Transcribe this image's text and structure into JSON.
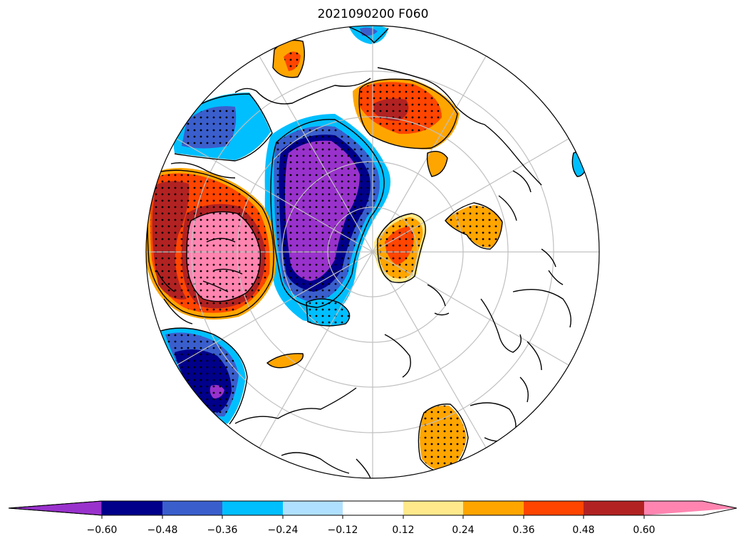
{
  "title": "2021090200 F060",
  "colorbar": {
    "extend": "both",
    "colors": [
      "#9932cc",
      "#00008b",
      "#3a5fcd",
      "#00bfff",
      "#b0e0ff",
      "#ffffff",
      "#ffe98a",
      "#ffa500",
      "#ff4500",
      "#b22222",
      "#ff85b0"
    ],
    "ticks": [
      "−0.60",
      "−0.48",
      "−0.36",
      "−0.24",
      "−0.12",
      "0.12",
      "0.24",
      "0.36",
      "0.48",
      "0.60"
    ]
  },
  "map": {
    "projection": "north-polar-stereographic",
    "graticule_color": "#c0c0c0",
    "coastline_color": "#000000",
    "stipple": "significance-dots"
  }
}
